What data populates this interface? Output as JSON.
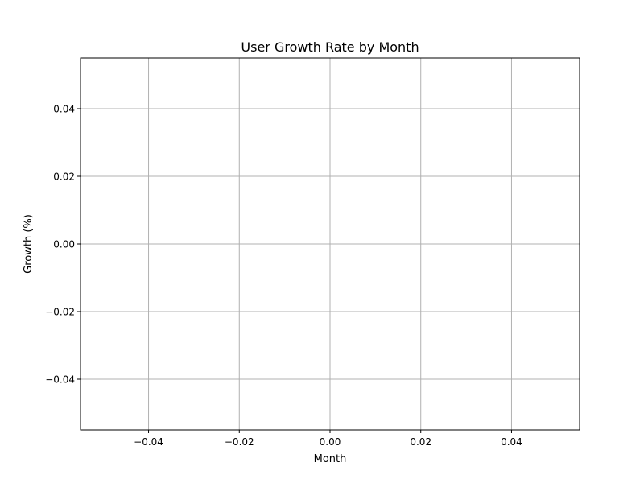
{
  "chart_data": {
    "type": "line",
    "title": "User Growth Rate by Month",
    "xlabel": "Month",
    "ylabel": "Growth (%)",
    "xlim": [
      -0.055,
      0.055
    ],
    "ylim": [
      -0.055,
      0.055
    ],
    "xticks": [
      -0.04,
      -0.02,
      0.0,
      0.02,
      0.04
    ],
    "yticks": [
      -0.04,
      -0.02,
      0.0,
      0.02,
      0.04
    ],
    "xtick_labels": [
      "−0.04",
      "−0.02",
      "0.00",
      "0.02",
      "0.04"
    ],
    "ytick_labels": [
      "−0.04",
      "−0.02",
      "0.00",
      "0.02",
      "0.04"
    ],
    "grid": true,
    "series": []
  }
}
